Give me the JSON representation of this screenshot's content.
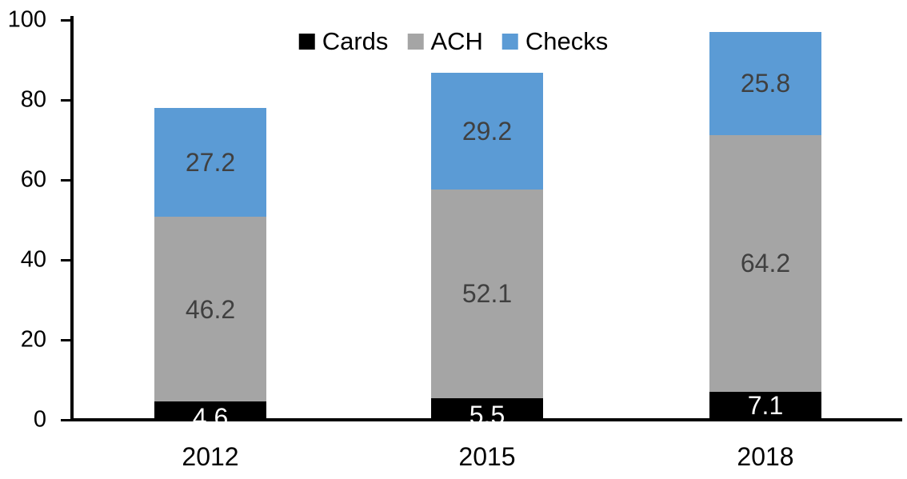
{
  "chart_data": {
    "type": "bar",
    "stacked": true,
    "categories": [
      "2012",
      "2015",
      "2018"
    ],
    "series": [
      {
        "name": "Cards",
        "color": "#000000",
        "label_color": "#ffffff",
        "values": [
          4.6,
          5.5,
          7.1
        ]
      },
      {
        "name": "ACH",
        "color": "#a5a5a5",
        "label_color": "#404040",
        "values": [
          46.2,
          52.1,
          64.2
        ]
      },
      {
        "name": "Checks",
        "color": "#5b9bd5",
        "label_color": "#404040",
        "values": [
          27.2,
          29.2,
          25.8
        ]
      }
    ],
    "value_label_decimals": 1,
    "ylim": [
      0,
      100
    ],
    "yticks": [
      0,
      20,
      40,
      60,
      80,
      100
    ],
    "grid": false,
    "legend_position": "top-center",
    "axis_color": "#000000",
    "background_color": "#ffffff"
  }
}
